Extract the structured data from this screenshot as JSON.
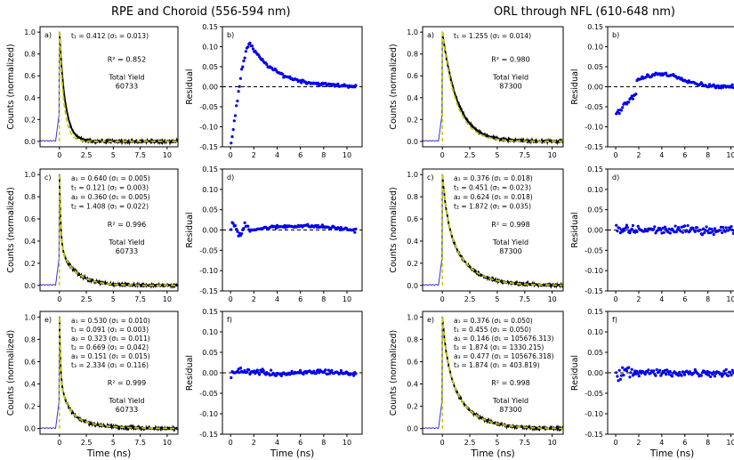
{
  "titles": {
    "left": "RPE and Choroid (556-594 nm)",
    "right": "ORL through NFL (610-648 nm)"
  },
  "chart_data": [
    {
      "type": "line",
      "panel": "a)",
      "ylabel": "Counts (normalized)",
      "xlabel": "",
      "x_range": [
        -1.8,
        11
      ],
      "ylim": [
        -0.05,
        1.05
      ],
      "xticks": [
        0,
        2.5,
        5,
        7.5,
        10
      ],
      "yticks": [
        0,
        0.2,
        0.4,
        0.6,
        0.8,
        1.0
      ],
      "model": {
        "components": [
          [
            1.0,
            0.412
          ]
        ],
        "ratio": 1.3
      },
      "annotations": [
        {
          "text": "t₁ = 0.412    (σ₁ = 0.013)"
        },
        {
          "text": "R² = 0.852"
        },
        {
          "text": "Total Yield"
        },
        {
          "text": "60733"
        }
      ],
      "series": [
        {
          "style": "blue-irf"
        },
        {
          "style": "black-data"
        },
        {
          "style": "yellow-fit"
        }
      ]
    },
    {
      "type": "scatter",
      "panel": "b)",
      "ylabel": "Residual",
      "xlabel": "",
      "x_range": [
        -0.7,
        11.3
      ],
      "ylim": [
        -0.15,
        0.15
      ],
      "xticks": [
        0,
        2,
        4,
        6,
        8,
        10
      ],
      "yticks": [
        -0.15,
        -0.1,
        -0.05,
        0.0,
        0.05,
        0.1,
        0.15
      ],
      "residual": "bump1"
    },
    {
      "type": "line",
      "panel": "c)",
      "ylabel": "Counts (normalized)",
      "xlabel": "",
      "x_range": [
        -1.8,
        11
      ],
      "ylim": [
        -0.05,
        1.05
      ],
      "xticks": [
        0,
        2.5,
        5,
        7.5,
        10
      ],
      "yticks": [
        0,
        0.2,
        0.4,
        0.6,
        0.8,
        1.0
      ],
      "model": {
        "components": [
          [
            0.64,
            0.121
          ],
          [
            0.36,
            1.408
          ]
        ],
        "ratio": 1.0
      },
      "annotations": [
        {
          "text": "a₁ = 0.640    (σ₁ = 0.005)"
        },
        {
          "text": "t₁ = 0.121    (σ₁ = 0.003)"
        },
        {
          "text": "a₂ = 0.360    (σ₁ = 0.005)"
        },
        {
          "text": "t₂ = 1.408    (σ₁ = 0.022)"
        },
        {
          "text": "R² = 0.996"
        },
        {
          "text": "Total Yield"
        },
        {
          "text": "60733"
        }
      ],
      "series": [
        {
          "style": "blue-irf"
        },
        {
          "style": "black-data"
        },
        {
          "style": "yellow-fit"
        }
      ]
    },
    {
      "type": "scatter",
      "panel": "d)",
      "ylabel": "Residual",
      "xlabel": "",
      "x_range": [
        -0.7,
        11.3
      ],
      "ylim": [
        -0.15,
        0.15
      ],
      "xticks": [
        0,
        2,
        4,
        6,
        8,
        10
      ],
      "yticks": [
        -0.15,
        -0.1,
        -0.05,
        0.0,
        0.05,
        0.1,
        0.15
      ],
      "residual": "small"
    },
    {
      "type": "line",
      "panel": "e)",
      "ylabel": "Counts (normalized)",
      "xlabel": "Time (ns)",
      "x_range": [
        -1.8,
        11
      ],
      "ylim": [
        -0.05,
        1.05
      ],
      "xticks": [
        0,
        2.5,
        5,
        7.5,
        10
      ],
      "yticks": [
        0,
        0.2,
        0.4,
        0.6,
        0.8,
        1.0
      ],
      "model": {
        "components": [
          [
            0.53,
            0.091
          ],
          [
            0.323,
            0.669
          ],
          [
            0.151,
            2.334
          ]
        ],
        "ratio": 1.0
      },
      "annotations": [
        {
          "text": "a₁ = 0.530    (σ₁ = 0.010)"
        },
        {
          "text": "t₁ = 0.091    (σ₁ = 0.003)"
        },
        {
          "text": "a₂ = 0.323    (σ₁ = 0.011)"
        },
        {
          "text": "t₂ = 0.669    (σ₁ = 0.042)"
        },
        {
          "text": "a₃ = 0.151    (σ₁ = 0.015)"
        },
        {
          "text": "t₃ = 2.334    (σ₁ = 0.116)"
        },
        {
          "text": "R² = 0.999"
        },
        {
          "text": "Total Yield"
        },
        {
          "text": "60733"
        }
      ],
      "series": [
        {
          "style": "blue-irf"
        },
        {
          "style": "black-data"
        },
        {
          "style": "yellow-fit"
        }
      ]
    },
    {
      "type": "scatter",
      "panel": "f)",
      "ylabel": "Residual",
      "xlabel": "Time (ns)",
      "x_range": [
        -0.7,
        11.3
      ],
      "ylim": [
        -0.15,
        0.15
      ],
      "xticks": [
        0,
        2,
        4,
        6,
        8,
        10
      ],
      "yticks": [
        -0.15,
        -0.1,
        -0.05,
        0.0,
        0.05,
        0.1,
        0.15
      ],
      "residual": "tiny"
    },
    {
      "type": "line",
      "panel": "a)",
      "ylabel": "Counts (normalized)",
      "xlabel": "",
      "x_range": [
        -1.8,
        11
      ],
      "ylim": [
        -0.05,
        1.05
      ],
      "xticks": [
        0,
        2.5,
        5,
        7.5,
        10
      ],
      "yticks": [
        0,
        0.2,
        0.4,
        0.6,
        0.8,
        1.0
      ],
      "model": {
        "components": [
          [
            1.0,
            1.255
          ]
        ],
        "ratio": 1.1
      },
      "annotations": [
        {
          "text": "t₁ = 1.255    (σ₁ = 0.014)"
        },
        {
          "text": "R² = 0.980"
        },
        {
          "text": "Total Yield"
        },
        {
          "text": "87300"
        }
      ],
      "series": [
        {
          "style": "blue-irf"
        },
        {
          "style": "black-data"
        },
        {
          "style": "yellow-fit"
        }
      ]
    },
    {
      "type": "scatter",
      "panel": "b)",
      "ylabel": "Residual",
      "xlabel": "",
      "x_range": [
        -0.7,
        10.5
      ],
      "ylim": [
        -0.15,
        0.15
      ],
      "xticks": [
        0,
        2,
        4,
        6,
        8,
        10
      ],
      "yticks": [
        -0.15,
        -0.1,
        -0.05,
        0.0,
        0.05,
        0.1,
        0.15
      ],
      "residual": "dip2"
    },
    {
      "type": "line",
      "panel": "c)",
      "ylabel": "Counts (normalized)",
      "xlabel": "",
      "x_range": [
        -1.8,
        11
      ],
      "ylim": [
        -0.05,
        1.05
      ],
      "xticks": [
        0,
        2.5,
        5,
        7.5,
        10
      ],
      "yticks": [
        0,
        0.2,
        0.4,
        0.6,
        0.8,
        1.0
      ],
      "model": {
        "components": [
          [
            0.376,
            0.451
          ],
          [
            0.624,
            1.872
          ]
        ],
        "ratio": 1.0
      },
      "annotations": [
        {
          "text": "a₁ = 0.376    (σ₁ = 0.018)"
        },
        {
          "text": "t₁ = 0.451    (σ₁ = 0.023)"
        },
        {
          "text": "a₂ = 0.624    (σ₁ = 0.018)"
        },
        {
          "text": "t₂ = 1.872    (σ₁ = 0.035)"
        },
        {
          "text": "R² = 0.998"
        },
        {
          "text": "Total Yield"
        },
        {
          "text": "87300"
        }
      ],
      "series": [
        {
          "style": "blue-irf"
        },
        {
          "style": "black-data"
        },
        {
          "style": "yellow-fit"
        }
      ]
    },
    {
      "type": "scatter",
      "panel": "d)",
      "ylabel": "Residual",
      "xlabel": "",
      "x_range": [
        -0.7,
        10.5
      ],
      "ylim": [
        -0.15,
        0.15
      ],
      "xticks": [
        0,
        2,
        4,
        6,
        8,
        10
      ],
      "yticks": [
        -0.15,
        -0.1,
        -0.05,
        0.0,
        0.05,
        0.1,
        0.15
      ],
      "residual": "noisy"
    },
    {
      "type": "line",
      "panel": "e)",
      "ylabel": "Counts (normalized)",
      "xlabel": "Time (ns)",
      "x_range": [
        -1.8,
        11
      ],
      "ylim": [
        -0.05,
        1.05
      ],
      "xticks": [
        0,
        2.5,
        5,
        7.5,
        10
      ],
      "yticks": [
        0,
        0.2,
        0.4,
        0.6,
        0.8,
        1.0
      ],
      "model": {
        "components": [
          [
            0.376,
            0.455
          ],
          [
            0.146,
            1.874
          ],
          [
            0.477,
            1.874
          ]
        ],
        "ratio": 1.0
      },
      "annotations": [
        {
          "text": "a₁ = 0.376  (σ₁ = 0.050)"
        },
        {
          "text": "t₁ = 0.455  (σ₁ = 0.050)"
        },
        {
          "text": "a₂ = 0.146  (σ₁ = 105676.313)"
        },
        {
          "text": "t₂ = 1.874  (σ₁ = 1330.215)"
        },
        {
          "text": "a₃ = 0.477  (σ₁ = 105676.318)"
        },
        {
          "text": "t₃ = 1.874  (σ₁ = 403.819)"
        },
        {
          "text": "R² = 0.998"
        },
        {
          "text": "Total Yield"
        },
        {
          "text": "87300"
        }
      ],
      "series": [
        {
          "style": "blue-irf"
        },
        {
          "style": "black-data"
        },
        {
          "style": "yellow-fit"
        }
      ]
    },
    {
      "type": "scatter",
      "panel": "f)",
      "ylabel": "Residual",
      "xlabel": "Time (ns)",
      "x_range": [
        -0.7,
        10.5
      ],
      "ylim": [
        -0.15,
        0.15
      ],
      "xticks": [
        0,
        2,
        4,
        6,
        8,
        10
      ],
      "yticks": [
        -0.15,
        -0.1,
        -0.05,
        0.0,
        0.05,
        0.1,
        0.15
      ],
      "residual": "noisy"
    }
  ],
  "colors": {
    "data": "#000000",
    "fit": "#c8c800",
    "irf": "#3333dd",
    "residual": "#0000ee"
  }
}
